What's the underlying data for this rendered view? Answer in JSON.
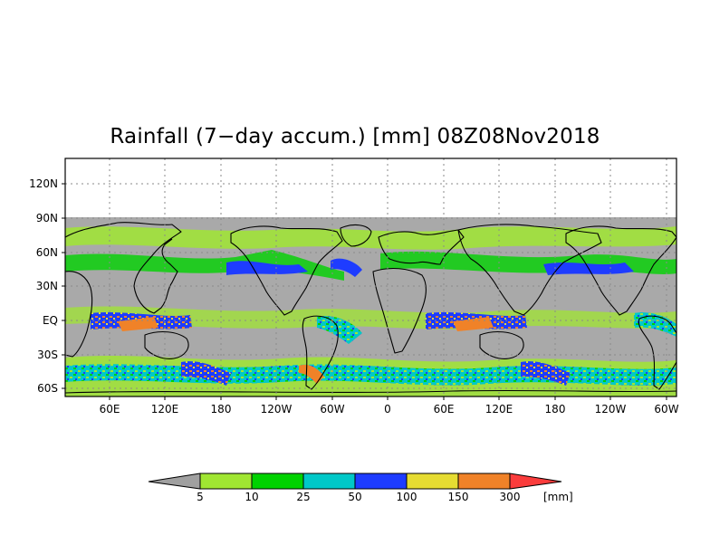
{
  "title": "Rainfall (7−day accum.) [mm] 08Z08Nov2018",
  "y_ticks": [
    "120N",
    "90N",
    "60N",
    "30N",
    "EQ",
    "30S",
    "60S"
  ],
  "x_ticks": [
    "60E",
    "120E",
    "180",
    "120W",
    "60W",
    "0",
    "60E",
    "120E",
    "180",
    "120W",
    "60W"
  ],
  "colorbar": {
    "unit": "[mm]",
    "levels": [
      "5",
      "10",
      "25",
      "50",
      "100",
      "150",
      "300"
    ],
    "colors": {
      "below_min": "#a0a0a0",
      "bins": [
        "#a0e632",
        "#00d200",
        "#00c8c8",
        "#1e3cff",
        "#e6dc32",
        "#f08228"
      ],
      "above_max": "#fa3c3c"
    }
  },
  "colors": {
    "ocean_no_rain": "#a9a9a9",
    "no_data": "#ffffff",
    "coastline": "#000000"
  }
}
